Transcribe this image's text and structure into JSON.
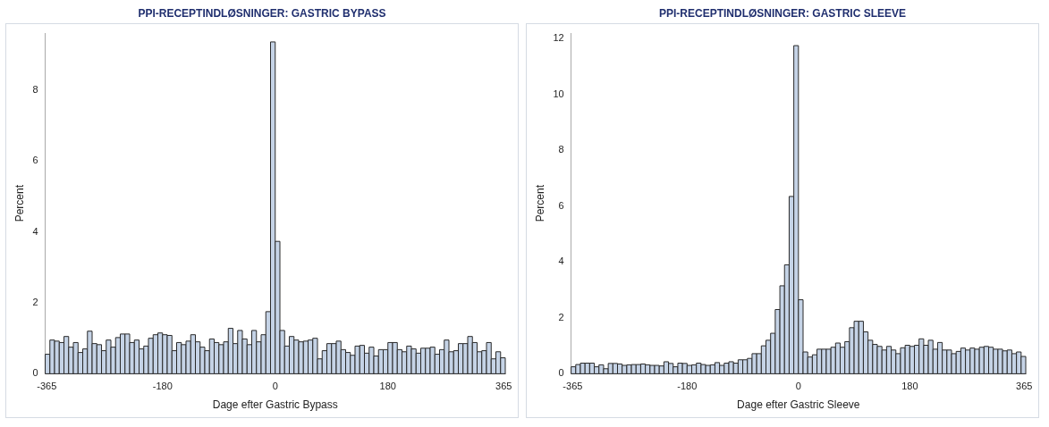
{
  "chart_data": [
    {
      "type": "histogram",
      "title": "PPI-RECEPTINDLØSNINGER: GASTRIC BYPASS",
      "xlabel": "Dage efter Gastric Bypass",
      "ylabel": "Percent",
      "color": "#c5d3e6",
      "grid": false,
      "legend": false,
      "bins": [
        -367.5,
        -360,
        -352.5,
        -345,
        -337.5,
        -330,
        -322.5,
        -315,
        -307.5,
        -300,
        -292.5,
        -285,
        -277.5,
        -270,
        -262.5,
        -255,
        -247.5,
        -240,
        -232.5,
        -225,
        -217.5,
        -210,
        -202.5,
        -195,
        -187.5,
        -180,
        -172.5,
        -165,
        -157.5,
        -150,
        -142.5,
        -135,
        -127.5,
        -120,
        -112.5,
        -105,
        -97.5,
        -90,
        -82.5,
        -75,
        -67.5,
        -60,
        -52.5,
        -45,
        -37.5,
        -30,
        -22.5,
        -15,
        -7.5,
        0,
        7.5,
        15,
        22.5,
        30,
        37.5,
        45,
        52.5,
        60,
        67.5,
        75,
        82.5,
        90,
        97.5,
        105,
        112.5,
        120,
        127.5,
        135,
        142.5,
        150,
        157.5,
        165,
        172.5,
        180,
        187.5,
        195,
        202.5,
        210,
        217.5,
        225,
        232.5,
        240,
        247.5,
        255,
        262.5,
        270,
        277.5,
        285,
        292.5,
        300,
        307.5,
        315,
        322.5,
        330,
        337.5,
        345,
        352.5,
        360,
        367.5
      ],
      "values": [
        0.55,
        0.95,
        0.92,
        0.88,
        1.05,
        0.75,
        0.88,
        0.6,
        0.7,
        1.2,
        0.85,
        0.82,
        0.65,
        0.95,
        0.75,
        1.02,
        1.12,
        1.12,
        0.88,
        0.95,
        0.7,
        0.78,
        1.0,
        1.1,
        1.15,
        1.1,
        1.08,
        0.65,
        0.88,
        0.82,
        0.92,
        1.1,
        0.9,
        0.75,
        0.65,
        0.98,
        0.88,
        0.82,
        0.9,
        1.28,
        0.85,
        1.22,
        0.98,
        0.82,
        1.22,
        0.9,
        1.1,
        1.75,
        9.35,
        3.73,
        1.22,
        0.78,
        1.05,
        0.95,
        0.9,
        0.92,
        0.95,
        1.0,
        0.42,
        0.65,
        0.85,
        0.85,
        0.92,
        0.68,
        0.6,
        0.52,
        0.78,
        0.8,
        0.58,
        0.75,
        0.5,
        0.68,
        0.68,
        0.88,
        0.88,
        0.68,
        0.62,
        0.78,
        0.7,
        0.58,
        0.72,
        0.72,
        0.75,
        0.55,
        0.68,
        0.95,
        0.62,
        0.65,
        0.85,
        0.85,
        1.05,
        0.88,
        0.62,
        0.65,
        0.88,
        0.42,
        0.62,
        0.45
      ],
      "xlim": [
        -367.5,
        367.5
      ],
      "xticks": [
        -365,
        -180,
        0,
        180,
        365
      ],
      "ylim": [
        0,
        9.6
      ],
      "yticks": [
        0,
        2,
        4,
        6,
        8
      ]
    },
    {
      "type": "histogram",
      "title": "PPI-RECEPTINDLØSNINGER: GASTRIC SLEEVE",
      "xlabel": "Dage efter Gastric Sleeve",
      "ylabel": "Percent",
      "color": "#c5d3e6",
      "grid": false,
      "legend": false,
      "bins": [
        -367.5,
        -360,
        -352.5,
        -345,
        -337.5,
        -330,
        -322.5,
        -315,
        -307.5,
        -300,
        -292.5,
        -285,
        -277.5,
        -270,
        -262.5,
        -255,
        -247.5,
        -240,
        -232.5,
        -225,
        -217.5,
        -210,
        -202.5,
        -195,
        -187.5,
        -180,
        -172.5,
        -165,
        -157.5,
        -150,
        -142.5,
        -135,
        -127.5,
        -120,
        -112.5,
        -105,
        -97.5,
        -90,
        -82.5,
        -75,
        -67.5,
        -60,
        -52.5,
        -45,
        -37.5,
        -30,
        -22.5,
        -15,
        -7.5,
        0,
        7.5,
        15,
        22.5,
        30,
        37.5,
        45,
        52.5,
        60,
        67.5,
        75,
        82.5,
        90,
        97.5,
        105,
        112.5,
        120,
        127.5,
        135,
        142.5,
        150,
        157.5,
        165,
        172.5,
        180,
        187.5,
        195,
        202.5,
        210,
        217.5,
        225,
        232.5,
        240,
        247.5,
        255,
        262.5,
        270,
        277.5,
        285,
        292.5,
        300,
        307.5,
        315,
        322.5,
        330,
        337.5,
        345,
        352.5,
        360,
        367.5
      ],
      "values": [
        0.25,
        0.33,
        0.38,
        0.38,
        0.38,
        0.25,
        0.32,
        0.18,
        0.37,
        0.37,
        0.35,
        0.3,
        0.32,
        0.33,
        0.33,
        0.35,
        0.32,
        0.3,
        0.3,
        0.28,
        0.43,
        0.37,
        0.25,
        0.38,
        0.37,
        0.3,
        0.32,
        0.38,
        0.33,
        0.3,
        0.32,
        0.4,
        0.3,
        0.38,
        0.43,
        0.38,
        0.5,
        0.5,
        0.55,
        0.72,
        0.72,
        1.0,
        1.2,
        1.45,
        2.3,
        3.15,
        3.9,
        6.35,
        11.75,
        2.65,
        0.78,
        0.6,
        0.68,
        0.88,
        0.88,
        0.88,
        0.95,
        1.1,
        0.95,
        1.15,
        1.65,
        1.88,
        1.88,
        1.5,
        1.2,
        1.05,
        0.98,
        0.85,
        0.98,
        0.85,
        0.72,
        0.93,
        1.02,
        0.98,
        1.02,
        1.25,
        1.02,
        1.2,
        0.88,
        1.12,
        0.85,
        0.85,
        0.72,
        0.8,
        0.92,
        0.85,
        0.92,
        0.88,
        0.95,
        0.98,
        0.95,
        0.88,
        0.88,
        0.82,
        0.85,
        0.72,
        0.78,
        0.62
      ],
      "xlim": [
        -367.5,
        367.5
      ],
      "xticks": [
        -365,
        -180,
        0,
        180,
        365
      ],
      "ylim": [
        0,
        12.2
      ],
      "yticks": [
        0,
        2,
        4,
        6,
        8,
        10,
        12
      ]
    }
  ]
}
